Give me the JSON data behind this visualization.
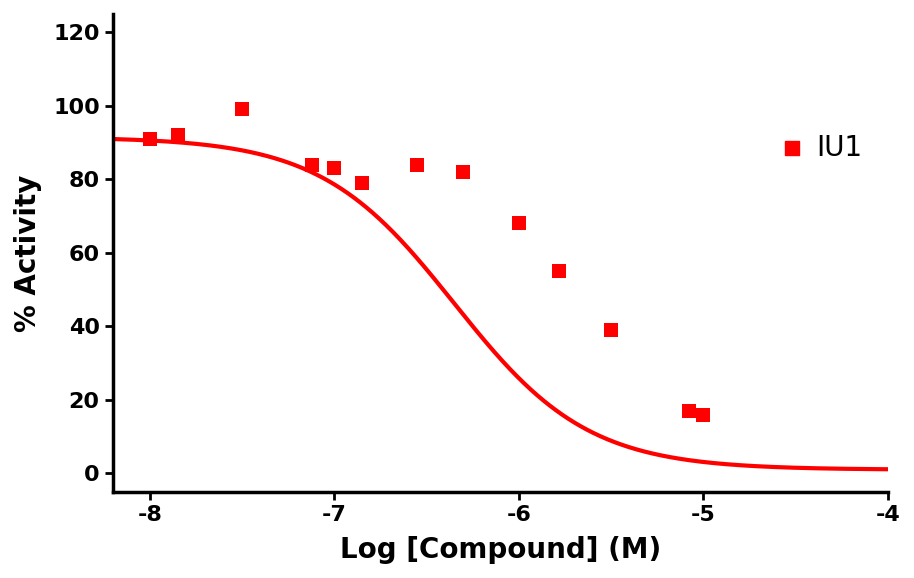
{
  "scatter_x": [
    -8.0,
    -7.85,
    -7.5,
    -7.12,
    -7.0,
    -6.85,
    -6.55,
    -6.3,
    -6.0,
    -5.78,
    -5.5,
    -5.08,
    -5.0
  ],
  "scatter_y": [
    91,
    92,
    99,
    84,
    83,
    79,
    84,
    82,
    68,
    55,
    39,
    17,
    16
  ],
  "color": "#FF0000",
  "marker": "s",
  "marker_size": 10,
  "line_color": "#FF0000",
  "line_width": 3.0,
  "xlabel": "Log [Compound] (M)",
  "ylabel": "% Activity",
  "xlim": [
    -8.2,
    -4.0
  ],
  "ylim": [
    -5,
    125
  ],
  "yticks": [
    0,
    20,
    40,
    60,
    80,
    100,
    120
  ],
  "xticks": [
    -8,
    -7,
    -6,
    -5,
    -4
  ],
  "legend_label": "IU1",
  "legend_marker": "s",
  "legend_color": "#FF0000",
  "top_max": 91.5,
  "bottom_min": 1.0,
  "ic50_log": -6.35,
  "hill_slope": 1.2,
  "background_color": "#FFFFFF",
  "axis_linewidth": 2.5,
  "tick_fontsize": 16,
  "label_fontsize": 20
}
